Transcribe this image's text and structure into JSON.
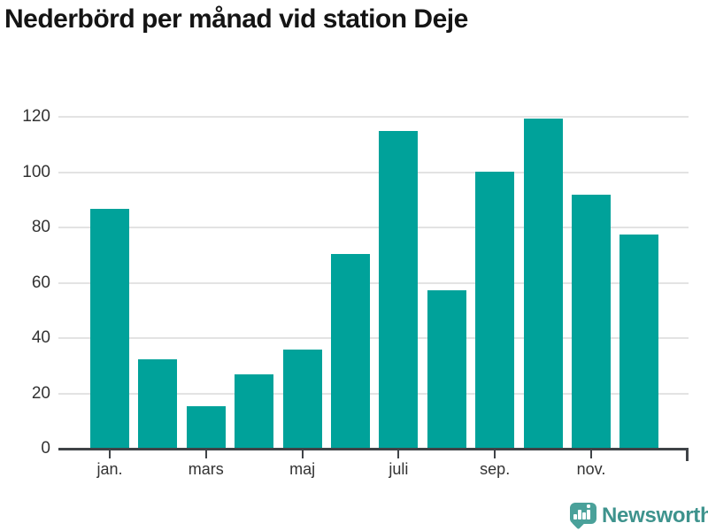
{
  "chart_data": {
    "type": "bar",
    "title": "Nederbörd per månad vid station Deje",
    "xlabel": "",
    "ylabel": "",
    "values": [
      86.5,
      32,
      15,
      26.5,
      35.5,
      70,
      114.5,
      57,
      100,
      119,
      91.5,
      77
    ],
    "x_ticks": [
      {
        "index": 0,
        "label": "jan."
      },
      {
        "index": 2,
        "label": "mars"
      },
      {
        "index": 4,
        "label": "maj"
      },
      {
        "index": 6,
        "label": "juli"
      },
      {
        "index": 8,
        "label": "sep."
      },
      {
        "index": 10,
        "label": "nov."
      }
    ],
    "y_ticks": [
      0,
      20,
      40,
      60,
      80,
      100,
      120
    ],
    "ylim": [
      0,
      120
    ],
    "grid": true,
    "legend": false,
    "bar_color": "#00A29A"
  },
  "colors": {
    "bar": "#00A29A",
    "grid": "#E3E3E3",
    "axis": "#3F4347",
    "label": "#333333",
    "title": "#141414",
    "brand_text": "#3E938D",
    "brand_icon": "#4AA19A"
  },
  "footer": {
    "brand": "Newsworthy"
  }
}
